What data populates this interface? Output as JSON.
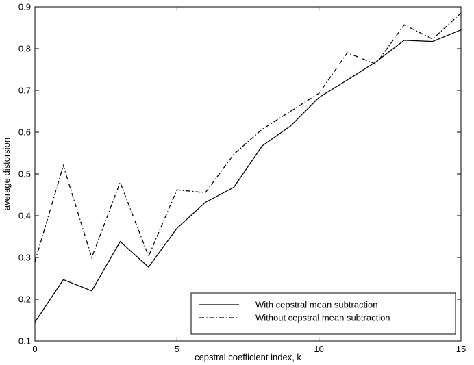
{
  "chart_data": {
    "type": "line",
    "title": "",
    "xlabel": "cepstral coefficient index, k",
    "ylabel": "average distorsion",
    "xlim": [
      0,
      15
    ],
    "ylim": [
      0.1,
      0.9
    ],
    "xticks": [
      0,
      5,
      10,
      15
    ],
    "xtick_labels": [
      "0",
      "5",
      "10",
      "15"
    ],
    "yticks": [
      0.1,
      0.2,
      0.3,
      0.4,
      0.5,
      0.6,
      0.7,
      0.8,
      0.9
    ],
    "ytick_labels": [
      "0.1",
      "0.2",
      "0.3",
      "0.4",
      "0.5",
      "0.6",
      "0.7",
      "0.8",
      "0.9"
    ],
    "grid": false,
    "legend_position": "bottom-right",
    "x": [
      0,
      1,
      2,
      3,
      4,
      5,
      6,
      7,
      8,
      9,
      10,
      11,
      12,
      13,
      14,
      15
    ],
    "series": [
      {
        "name": "With cepstral mean subtraction",
        "style": "solid",
        "color": "#000000",
        "values": [
          0.145,
          0.247,
          0.22,
          0.338,
          0.277,
          0.37,
          0.432,
          0.468,
          0.567,
          0.615,
          0.683,
          0.725,
          0.768,
          0.82,
          0.817,
          0.845
        ]
      },
      {
        "name": "Without cepstral mean subtraction",
        "style": "dashdot",
        "color": "#000000",
        "values": [
          0.29,
          0.52,
          0.3,
          0.48,
          0.303,
          0.462,
          0.455,
          0.547,
          0.607,
          0.65,
          0.693,
          0.79,
          0.763,
          0.857,
          0.823,
          0.885
        ]
      }
    ]
  }
}
